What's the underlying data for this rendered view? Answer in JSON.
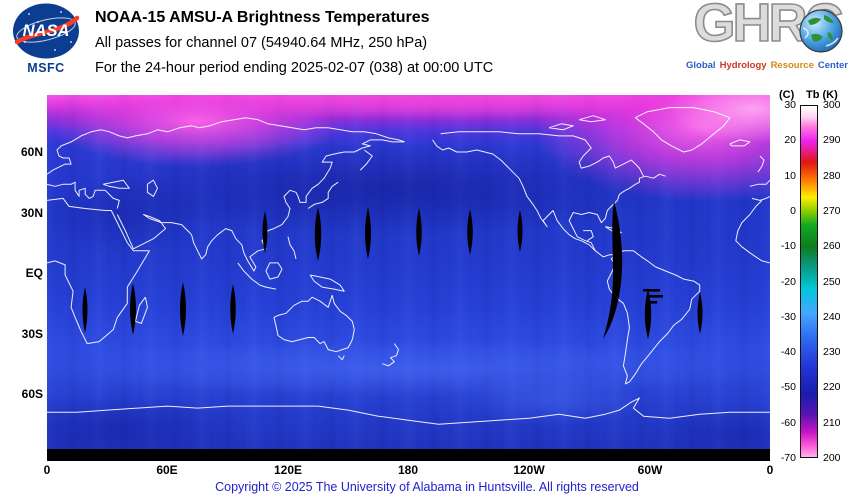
{
  "colors": {
    "map_ocean_blue": "#2239cc",
    "polar_pink": "#ff4ae0",
    "nasa_blue": "#0b3d91",
    "nasa_red": "#fc3d21",
    "footer_blue": "#2222cc"
  },
  "header": {
    "nasa_logo_text": "NASA",
    "msfc_label": "MSFC",
    "title": "NOAA-15 AMSU-A Brightness Temperatures",
    "subtitle": "All passes for channel 07 (54940.64 MHz, 250 hPa)",
    "period": "For the 24-hour period ending 2025-02-07 (038) at 00:00 UTC",
    "ghrc": {
      "acronym": "GHRC",
      "tagline": [
        "Global",
        "Hydrology",
        "Resource",
        "Center"
      ]
    }
  },
  "map": {
    "y_axis_labels": [
      "60N",
      "30N",
      "EQ",
      "30S",
      "60S"
    ],
    "x_axis_labels": [
      "0",
      "60E",
      "120E",
      "180",
      "120W",
      "60W",
      "0"
    ]
  },
  "colorbar": {
    "left_unit": "(C)",
    "right_unit": "Tb (K)",
    "kelvin_labels": [
      "300",
      "290",
      "280",
      "270",
      "260",
      "250",
      "240",
      "230",
      "220",
      "210",
      "200"
    ],
    "celsius_labels": [
      "30",
      "20",
      "10",
      "0",
      "-10",
      "-20",
      "-30",
      "-40",
      "-50",
      "-60",
      "-70"
    ]
  },
  "footer": {
    "copyright": "Copyright © 2025 The University of Alabama in Huntsville.  All rights reserved"
  }
}
